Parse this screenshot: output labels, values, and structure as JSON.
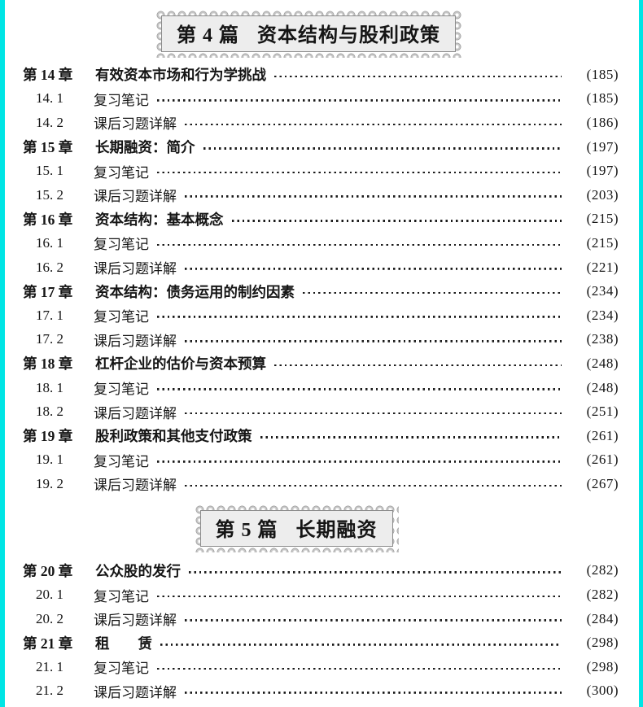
{
  "page": {
    "kind": "table-of-contents",
    "background": "#ffffff",
    "edge_color": "#00e5e5",
    "text_color": "#151515",
    "badge_fill": "#ededed",
    "badge_border": "#8c8c8c"
  },
  "sections": [
    {
      "badge_label": "第 4 篇",
      "badge_title": "资本结构与股利政策",
      "entries": [
        {
          "level": "chapter",
          "label": "第 14 章",
          "title": "有效资本市场和行为学挑战",
          "page": "(185)"
        },
        {
          "level": "sub",
          "label": "14. 1",
          "title": "复习笔记",
          "page": "(185)"
        },
        {
          "level": "sub",
          "label": "14. 2",
          "title": "课后习题详解",
          "page": "(186)"
        },
        {
          "level": "chapter",
          "label": "第 15 章",
          "title": "长期融资：简介",
          "page": "(197)"
        },
        {
          "level": "sub",
          "label": "15. 1",
          "title": "复习笔记",
          "page": "(197)"
        },
        {
          "level": "sub",
          "label": "15. 2",
          "title": "课后习题详解",
          "page": "(203)"
        },
        {
          "level": "chapter",
          "label": "第 16 章",
          "title": "资本结构：基本概念",
          "page": "(215)"
        },
        {
          "level": "sub",
          "label": "16. 1",
          "title": "复习笔记",
          "page": "(215)"
        },
        {
          "level": "sub",
          "label": "16. 2",
          "title": "课后习题详解",
          "page": "(221)"
        },
        {
          "level": "chapter",
          "label": "第 17 章",
          "title": "资本结构：债务运用的制约因素",
          "page": "(234)"
        },
        {
          "level": "sub",
          "label": "17. 1",
          "title": "复习笔记",
          "page": "(234)"
        },
        {
          "level": "sub",
          "label": "17. 2",
          "title": "课后习题详解",
          "page": "(238)"
        },
        {
          "level": "chapter",
          "label": "第 18 章",
          "title": "杠杆企业的估价与资本预算",
          "page": "(248)"
        },
        {
          "level": "sub",
          "label": "18. 1",
          "title": "复习笔记",
          "page": "(248)"
        },
        {
          "level": "sub",
          "label": "18. 2",
          "title": "课后习题详解",
          "page": "(251)"
        },
        {
          "level": "chapter",
          "label": "第 19 章",
          "title": "股利政策和其他支付政策",
          "page": "(261)"
        },
        {
          "level": "sub",
          "label": "19. 1",
          "title": "复习笔记",
          "page": "(261)"
        },
        {
          "level": "sub",
          "label": "19. 2",
          "title": "课后习题详解",
          "page": "(267)"
        }
      ]
    },
    {
      "badge_label": "第 5 篇",
      "badge_title": "长期融资",
      "entries": [
        {
          "level": "chapter",
          "label": "第 20 章",
          "title": "公众股的发行",
          "page": "(282)"
        },
        {
          "level": "sub",
          "label": "20. 1",
          "title": "复习笔记",
          "page": "(282)"
        },
        {
          "level": "sub",
          "label": "20. 2",
          "title": "课后习题详解",
          "page": "(284)"
        },
        {
          "level": "chapter",
          "label": "第 21 章",
          "title": "租　　赁",
          "page": "(298)"
        },
        {
          "level": "sub",
          "label": "21. 1",
          "title": "复习笔记",
          "page": "(298)"
        },
        {
          "level": "sub",
          "label": "21. 2",
          "title": "课后习题详解",
          "page": "(300)"
        }
      ]
    }
  ]
}
